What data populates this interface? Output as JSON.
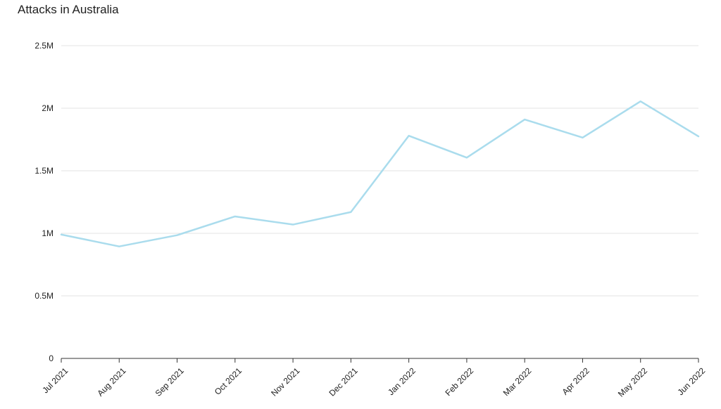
{
  "chart_data": {
    "type": "line",
    "title": "Attacks in Australia",
    "xlabel": "",
    "ylabel": "",
    "categories": [
      "Jul 2021",
      "Aug 2021",
      "Sep 2021",
      "Oct 2021",
      "Nov 2021",
      "Dec 2021",
      "Jan 2022",
      "Feb 2022",
      "Mar 2022",
      "Apr 2022",
      "May 2022",
      "Jun 2022"
    ],
    "series": [
      {
        "values": [
          990000,
          895000,
          985000,
          1135000,
          1070000,
          1170000,
          1780000,
          1605000,
          1910000,
          1765000,
          2055000,
          1775000
        ],
        "color": "#aadced"
      }
    ],
    "ylim": [
      0,
      2500000
    ],
    "yticks": [
      0,
      500000,
      1000000,
      1500000,
      2000000,
      2500000
    ],
    "ytick_labels": [
      "0",
      "0.5M",
      "1M",
      "1.5M",
      "2M",
      "2.5M"
    ],
    "grid": true,
    "legend": "none"
  }
}
